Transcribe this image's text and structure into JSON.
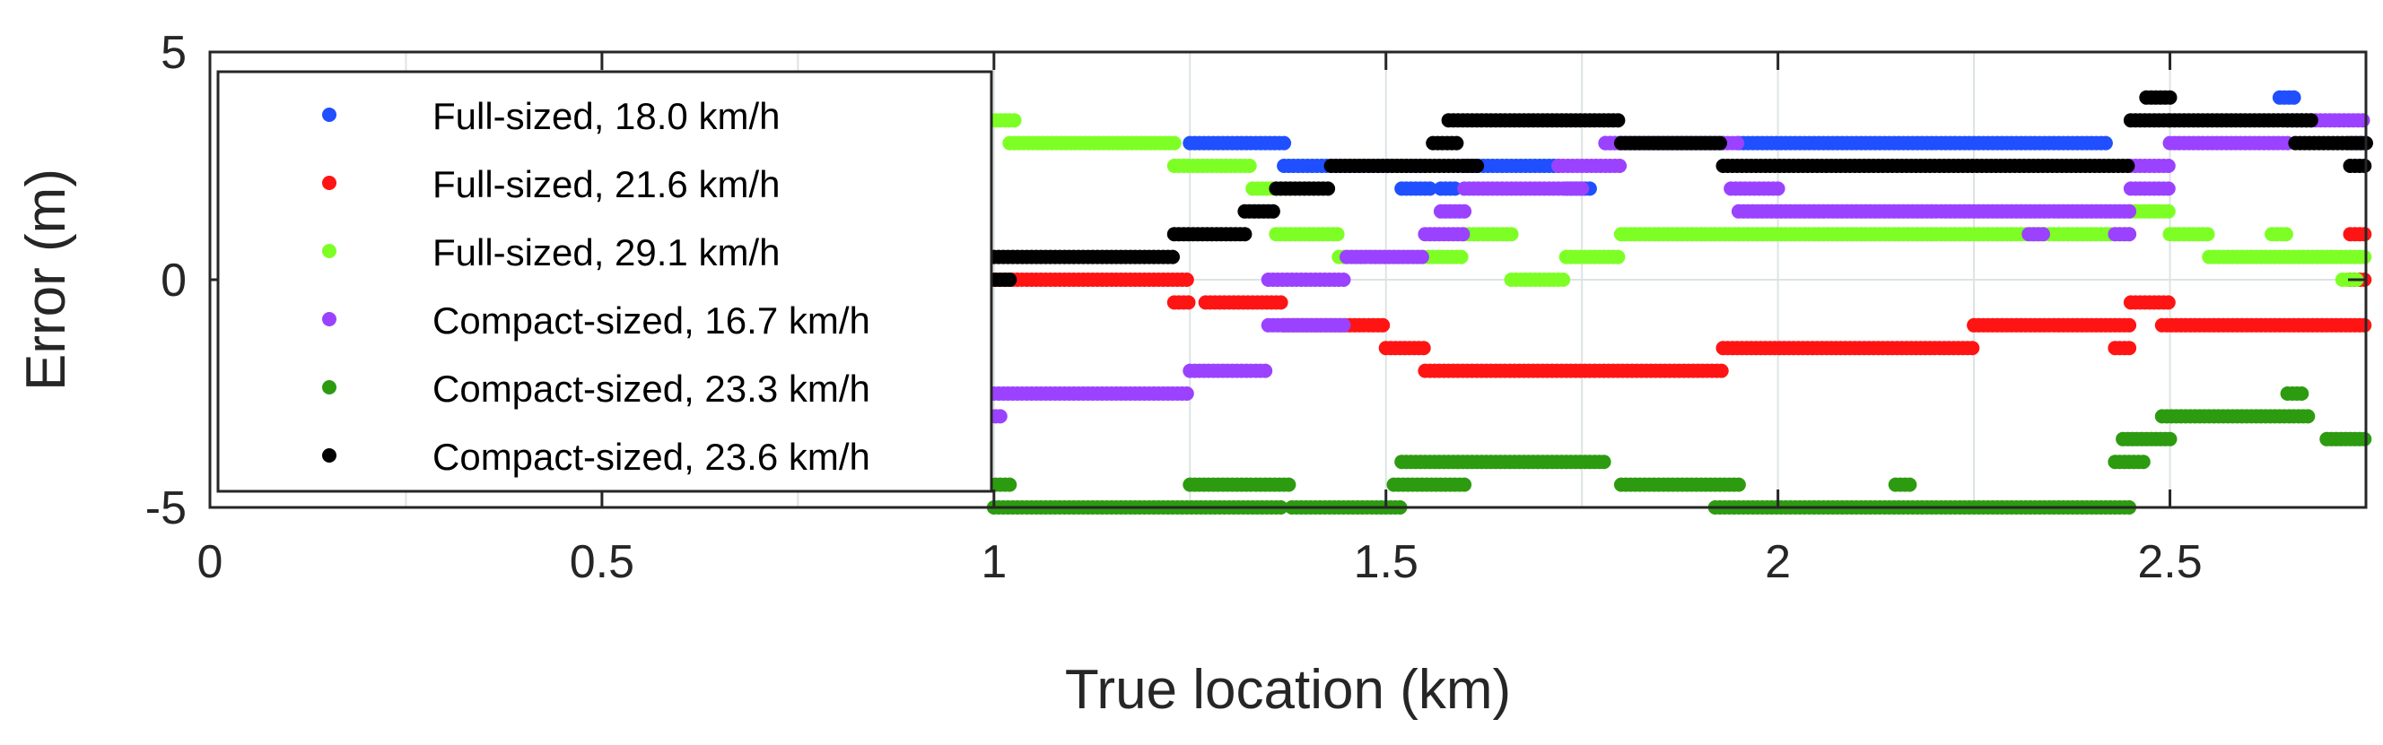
{
  "chart_data": {
    "type": "scatter",
    "title": "",
    "xlabel": "True location (km)",
    "ylabel": "Error (m)",
    "xlim": [
      0,
      2.75
    ],
    "ylim": [
      -5,
      5
    ],
    "xticks": [
      "0",
      "0.5",
      "1",
      "1.5",
      "2",
      "2.5"
    ],
    "yticks": [
      "5",
      "0",
      "-5"
    ],
    "grid": true,
    "legend_position": "top-left",
    "series": [
      {
        "name": "Full-sized, 18.0 km/h",
        "color": "#1f4fff",
        "segments": [
          [
            1.25,
            1.37,
            3.0
          ],
          [
            1.37,
            1.55,
            2.5
          ],
          [
            1.52,
            1.56,
            2.0
          ],
          [
            1.57,
            1.59,
            2.0
          ],
          [
            1.6,
            1.72,
            2.5
          ],
          [
            1.73,
            1.76,
            2.0
          ],
          [
            1.78,
            1.93,
            3.0
          ],
          [
            1.95,
            2.42,
            3.0
          ],
          [
            2.64,
            2.66,
            4.0
          ],
          [
            2.73,
            2.75,
            3.0
          ]
        ]
      },
      {
        "name": "Full-sized, 21.6 km/h",
        "color": "#ff1414",
        "segments": [
          [
            1.0,
            1.25,
            0.0
          ],
          [
            1.23,
            1.25,
            -0.5
          ],
          [
            1.27,
            1.37,
            -0.5
          ],
          [
            1.37,
            1.5,
            -1.0
          ],
          [
            1.5,
            1.55,
            -1.5
          ],
          [
            1.55,
            1.93,
            -2.0
          ],
          [
            1.93,
            2.25,
            -1.5
          ],
          [
            2.25,
            2.45,
            -1.0
          ],
          [
            2.43,
            2.45,
            -1.5
          ],
          [
            2.45,
            2.5,
            -0.5
          ],
          [
            2.49,
            2.75,
            -1.0
          ],
          [
            2.73,
            2.75,
            0.0
          ],
          [
            2.73,
            2.75,
            1.0
          ]
        ]
      },
      {
        "name": "Full-sized, 29.1 km/h",
        "color": "#7dff26",
        "segments": [
          [
            0.99,
            1.03,
            3.5
          ],
          [
            1.02,
            1.23,
            3.0
          ],
          [
            1.23,
            1.33,
            2.5
          ],
          [
            1.33,
            1.38,
            2.0
          ],
          [
            1.36,
            1.44,
            1.0
          ],
          [
            1.44,
            1.6,
            0.5
          ],
          [
            1.6,
            1.66,
            1.0
          ],
          [
            1.66,
            1.73,
            0.0
          ],
          [
            1.73,
            1.8,
            0.5
          ],
          [
            1.8,
            2.45,
            1.0
          ],
          [
            2.45,
            2.5,
            1.5
          ],
          [
            2.5,
            2.55,
            1.0
          ],
          [
            2.63,
            2.65,
            1.0
          ],
          [
            2.55,
            2.75,
            0.5
          ],
          [
            2.72,
            2.74,
            0.0
          ]
        ]
      },
      {
        "name": "Compact-sized, 16.7 km/h",
        "color": "#9a42ff",
        "segments": [
          [
            0.99,
            1.01,
            -3.0
          ],
          [
            1.0,
            1.25,
            -2.5
          ],
          [
            1.25,
            1.35,
            -2.0
          ],
          [
            1.35,
            1.45,
            -1.0
          ],
          [
            1.35,
            1.45,
            0.0
          ],
          [
            1.45,
            1.55,
            0.5
          ],
          [
            1.55,
            1.6,
            1.0
          ],
          [
            1.57,
            1.6,
            1.5
          ],
          [
            1.6,
            1.75,
            2.0
          ],
          [
            1.72,
            1.8,
            2.5
          ],
          [
            1.78,
            1.95,
            3.0
          ],
          [
            1.94,
            2.0,
            2.0
          ],
          [
            1.95,
            2.45,
            1.5
          ],
          [
            2.32,
            2.34,
            1.0
          ],
          [
            2.43,
            2.45,
            1.0
          ],
          [
            2.45,
            2.5,
            2.0
          ],
          [
            2.45,
            2.5,
            2.5
          ],
          [
            2.5,
            2.65,
            3.0
          ],
          [
            2.65,
            2.75,
            3.5
          ]
        ]
      },
      {
        "name": "Compact-sized, 23.3 km/h",
        "color": "#2d9b10",
        "segments": [
          [
            0.99,
            1.02,
            -4.5
          ],
          [
            1.0,
            1.37,
            -5.0
          ],
          [
            1.25,
            1.38,
            -4.5
          ],
          [
            1.38,
            1.52,
            -5.0
          ],
          [
            1.51,
            1.6,
            -4.5
          ],
          [
            1.52,
            1.78,
            -4.0
          ],
          [
            1.8,
            1.95,
            -4.5
          ],
          [
            1.92,
            2.45,
            -5.0
          ],
          [
            2.15,
            2.17,
            -4.5
          ],
          [
            2.44,
            2.5,
            -3.5
          ],
          [
            2.43,
            2.47,
            -4.0
          ],
          [
            2.49,
            2.68,
            -3.0
          ],
          [
            2.65,
            2.67,
            -2.5
          ],
          [
            2.7,
            2.75,
            -3.5
          ]
        ]
      },
      {
        "name": "Compact-sized, 23.6 km/h",
        "color": "#000000",
        "segments": [
          [
            0.99,
            1.02,
            0.0
          ],
          [
            1.0,
            1.23,
            0.5
          ],
          [
            1.23,
            1.32,
            1.0
          ],
          [
            1.32,
            1.36,
            1.5
          ],
          [
            1.36,
            1.43,
            2.0
          ],
          [
            1.43,
            1.62,
            2.5
          ],
          [
            1.56,
            1.59,
            3.0
          ],
          [
            1.58,
            1.8,
            3.5
          ],
          [
            1.8,
            1.93,
            3.0
          ],
          [
            1.93,
            2.45,
            2.5
          ],
          [
            2.45,
            2.5,
            3.5
          ],
          [
            2.47,
            2.5,
            4.0
          ],
          [
            2.5,
            2.68,
            3.5
          ],
          [
            2.66,
            2.75,
            3.0
          ],
          [
            2.73,
            2.75,
            2.5
          ]
        ]
      }
    ]
  }
}
